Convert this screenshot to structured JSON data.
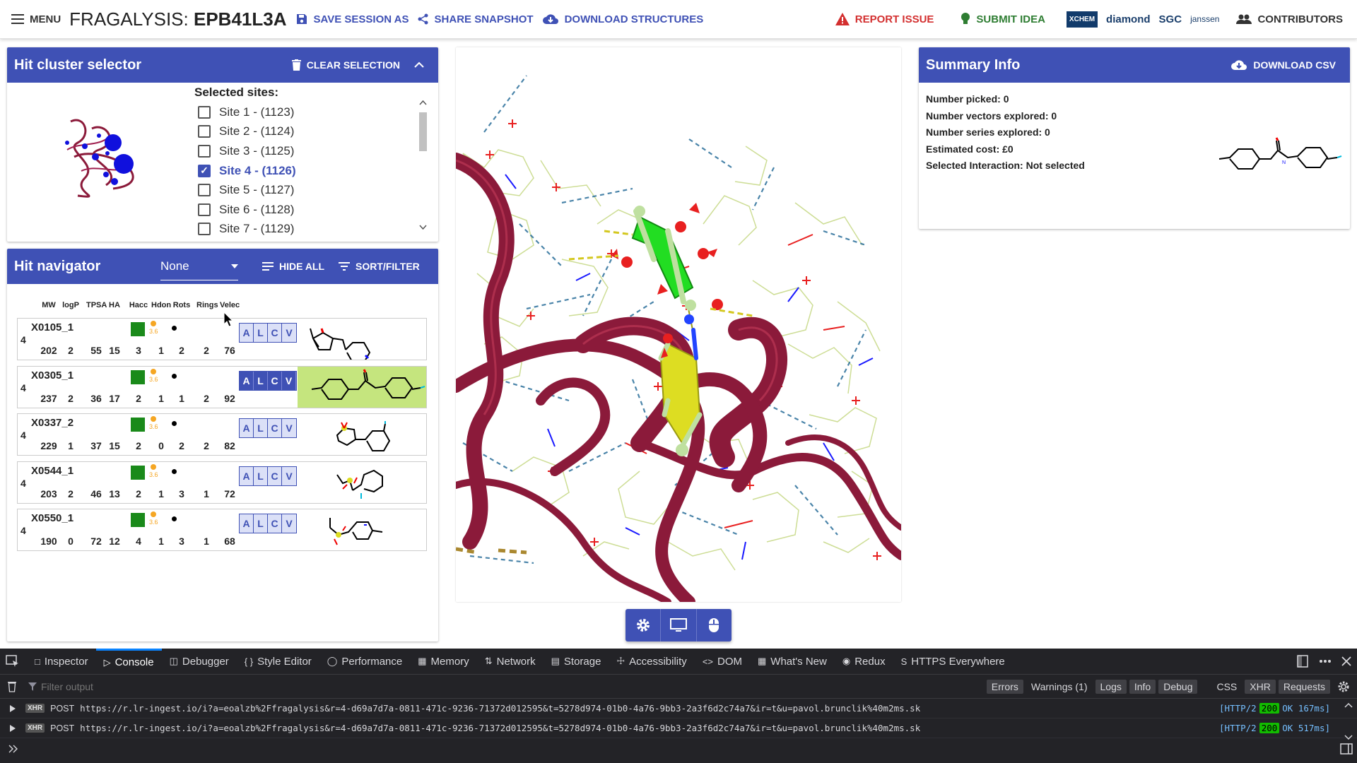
{
  "header": {
    "menu_label": "MENU",
    "title_prefix": "FRAGALYSIS:",
    "title_target": "EPB41L3A",
    "save_session": "SAVE SESSION AS",
    "share_snapshot": "SHARE SNAPSHOT",
    "download_structures": "DOWNLOAD STRUCTURES",
    "report_issue": "REPORT ISSUE",
    "submit_idea": "SUBMIT IDEA",
    "logos": [
      "XCHEM",
      "diamond",
      "SGC",
      "janssen"
    ],
    "contributors": "CONTRIBUTORS"
  },
  "cluster": {
    "title": "Hit cluster selector",
    "clear": "CLEAR SELECTION",
    "selected_label": "Selected sites:",
    "sites": [
      {
        "label": "Site 1 - (1123)",
        "checked": false
      },
      {
        "label": "Site 2 - (1124)",
        "checked": false
      },
      {
        "label": "Site 3 - (1125)",
        "checked": false
      },
      {
        "label": "Site 4 - (1126)",
        "checked": true
      },
      {
        "label": "Site 5 - (1127)",
        "checked": false
      },
      {
        "label": "Site 6 - (1128)",
        "checked": false
      },
      {
        "label": "Site 7 - (1129)",
        "checked": false
      }
    ]
  },
  "navigator": {
    "title": "Hit navigator",
    "select_value": "None",
    "hide_all": "HIDE ALL",
    "sort_filter": "SORT/FILTER",
    "columns": [
      "MW",
      "logP",
      "TPSA",
      "HA",
      "Hacc",
      "Hdon",
      "Rots",
      "Rings",
      "Velec"
    ],
    "alcv": [
      "A",
      "L",
      "C",
      "V"
    ],
    "rows": [
      {
        "site": "4",
        "code": "X0105_1",
        "score": "3.6",
        "values": [
          "202",
          "2",
          "55",
          "15",
          "3",
          "1",
          "2",
          "2",
          "76"
        ],
        "selected": false
      },
      {
        "site": "4",
        "code": "X0305_1",
        "score": "3.6",
        "values": [
          "237",
          "2",
          "36",
          "17",
          "2",
          "1",
          "1",
          "2",
          "92"
        ],
        "selected": true
      },
      {
        "site": "4",
        "code": "X0337_2",
        "score": "3.6",
        "values": [
          "229",
          "1",
          "37",
          "15",
          "2",
          "0",
          "2",
          "2",
          "82"
        ],
        "selected": false
      },
      {
        "site": "4",
        "code": "X0544_1",
        "score": "3.6",
        "values": [
          "203",
          "2",
          "46",
          "13",
          "2",
          "1",
          "3",
          "1",
          "72"
        ],
        "selected": false
      },
      {
        "site": "4",
        "code": "X0550_1",
        "score": "3.6",
        "values": [
          "190",
          "0",
          "72",
          "12",
          "4",
          "1",
          "3",
          "1",
          "68"
        ],
        "selected": false
      }
    ]
  },
  "summary": {
    "title": "Summary Info",
    "download_csv": "DOWNLOAD CSV",
    "lines": [
      "Number picked: 0",
      "Number vectors explored: 0",
      "Number series explored: 0",
      "Estimated cost: £0",
      "Selected Interaction: Not selected"
    ]
  },
  "viewer_buttons": [
    "gear-icon",
    "monitor-icon",
    "mouse-icon"
  ],
  "devtools": {
    "tabs": [
      "Inspector",
      "Console",
      "Debugger",
      "Style Editor",
      "Performance",
      "Memory",
      "Network",
      "Storage",
      "Accessibility",
      "DOM",
      "What's New",
      "Redux",
      "HTTPS Everywhere"
    ],
    "active_tab": "Console",
    "filter_placeholder": "Filter output",
    "filter_buttons": [
      "Errors",
      "Warnings (1)",
      "Logs",
      "Info",
      "Debug",
      "CSS",
      "XHR",
      "Requests"
    ],
    "logs": [
      {
        "badge": "XHR",
        "method": "POST",
        "url": "https://r.lr-ingest.io/i?a=eoalzb%2Ffragalysis&r=4-d69a7d7a-0811-471c-9236-71372d012595&t=5278d974-01b0-4a76-9bb3-2a3f6d2c74a7&ir=t&u=pavol.brunclik%40m2ms.sk",
        "proto": "[HTTP/2",
        "code": "200",
        "status": "OK 167ms]"
      },
      {
        "badge": "XHR",
        "method": "POST",
        "url": "https://r.lr-ingest.io/i?a=eoalzb%2Ffragalysis&r=4-d69a7d7a-0811-471c-9236-71372d012595&t=5278d974-01b0-4a76-9bb3-2a3f6d2c74a7&ir=t&u=pavol.brunclik%40m2ms.sk",
        "proto": "[HTTP/2",
        "code": "200",
        "status": "OK 517ms]"
      }
    ]
  },
  "colors": {
    "primary": "#3f51b5",
    "report": "#d32f2f",
    "idea": "#2e7d32",
    "ribbon": "#8b1a3a",
    "ligand_green": "#22dd22",
    "ligand_yellow": "#dddd22"
  }
}
